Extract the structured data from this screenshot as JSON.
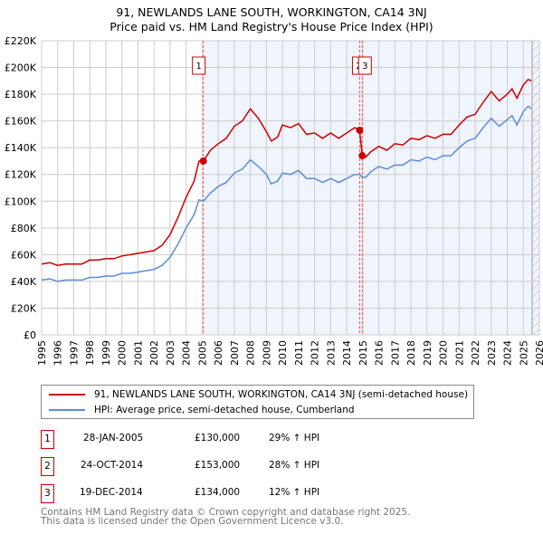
{
  "title": "91, NEWLANDS LANE SOUTH, WORKINGTON, CA14 3NJ",
  "subtitle": "Price paid vs. HM Land Registry's House Price Index (HPI)",
  "chart_data": {
    "type": "line",
    "title": "91, NEWLANDS LANE SOUTH, WORKINGTON, CA14 3NJ",
    "subtitle": "Price paid vs. HM Land Registry's House Price Index (HPI)",
    "xlim": [
      1995,
      2026
    ],
    "ylim": [
      0,
      220000
    ],
    "x_ticks": [
      "1995",
      "1996",
      "1997",
      "1998",
      "1999",
      "2000",
      "2001",
      "2002",
      "2003",
      "2004",
      "2005",
      "2006",
      "2007",
      "2008",
      "2009",
      "2010",
      "2011",
      "2012",
      "2013",
      "2014",
      "2015",
      "2016",
      "2017",
      "2018",
      "2019",
      "2020",
      "2021",
      "2022",
      "2023",
      "2024",
      "2025",
      "2026"
    ],
    "y_ticks": [
      {
        "v": 0,
        "label": "£0"
      },
      {
        "v": 20000,
        "label": "£20K"
      },
      {
        "v": 40000,
        "label": "£40K"
      },
      {
        "v": 60000,
        "label": "£60K"
      },
      {
        "v": 80000,
        "label": "£80K"
      },
      {
        "v": 100000,
        "label": "£100K"
      },
      {
        "v": 120000,
        "label": "£120K"
      },
      {
        "v": 140000,
        "label": "£140K"
      },
      {
        "v": 160000,
        "label": "£160K"
      },
      {
        "v": 180000,
        "label": "£180K"
      },
      {
        "v": 200000,
        "label": "£200K"
      },
      {
        "v": 220000,
        "label": "£220K"
      }
    ],
    "grid": true,
    "x": [
      1995,
      1995.5,
      1996,
      1996.5,
      1997,
      1997.5,
      1998,
      1998.5,
      1999,
      1999.5,
      2000,
      2000.5,
      2001,
      2001.5,
      2002,
      2002.5,
      2003,
      2003.5,
      2004,
      2004.5,
      2004.8,
      2005.08,
      2005.5,
      2006,
      2006.5,
      2007,
      2007.5,
      2008,
      2008.5,
      2009,
      2009.3,
      2009.7,
      2010,
      2010.5,
      2011,
      2011.5,
      2012,
      2012.5,
      2013,
      2013.5,
      2014,
      2014.5,
      2014.8,
      2014.97,
      2015.2,
      2015.5,
      2016,
      2016.5,
      2017,
      2017.5,
      2018,
      2018.5,
      2019,
      2019.5,
      2020,
      2020.5,
      2021,
      2021.5,
      2022,
      2022.5,
      2023,
      2023.5,
      2024,
      2024.3,
      2024.6,
      2025,
      2025.3,
      2025.5
    ],
    "series": [
      {
        "name": "91, NEWLANDS LANE SOUTH, WORKINGTON, CA14 3NJ (semi-detached house)",
        "color": "#cc0000",
        "values": [
          53,
          54,
          52,
          53,
          53,
          53,
          56,
          56,
          57,
          57,
          59,
          60,
          61,
          62,
          63,
          67,
          75,
          88,
          103,
          115,
          130,
          130,
          138,
          143,
          147,
          156,
          160,
          169,
          162,
          152,
          145,
          148,
          157,
          155,
          158,
          150,
          151,
          147,
          151,
          147,
          151,
          155,
          153,
          134,
          133,
          137,
          141,
          138,
          143,
          142,
          147,
          146,
          149,
          147,
          150,
          150,
          157,
          163,
          165,
          174,
          182,
          175,
          180,
          184,
          177,
          187,
          191,
          190
        ]
      },
      {
        "name": "HPI: Average price, semi-detached house, Cumberland",
        "color": "#5b8dd6",
        "values": [
          41,
          42,
          40,
          41,
          41,
          41,
          43,
          43,
          44,
          44,
          46,
          46,
          47,
          48,
          49,
          52,
          58,
          68,
          80,
          90,
          101,
          100,
          106,
          111,
          114,
          121,
          124,
          131,
          126,
          120,
          113,
          115,
          121,
          120,
          123,
          117,
          117,
          114,
          117,
          114,
          117,
          120,
          120,
          118,
          118,
          122,
          126,
          124,
          127,
          127,
          131,
          130,
          133,
          131,
          134,
          134,
          140,
          145,
          147,
          155,
          162,
          156,
          161,
          164,
          157,
          167,
          171,
          169
        ]
      }
    ],
    "value_unit": "thousands GBP",
    "sales": [
      {
        "id": "1",
        "x": 2005.07,
        "price": 130000,
        "date": "28-JAN-2005",
        "price_label": "£130,000",
        "hpi": "29% ↑ HPI"
      },
      {
        "id": "2",
        "x": 2014.81,
        "price": 153000,
        "date": "24-OCT-2014",
        "price_label": "£153,000",
        "hpi": "28% ↑ HPI"
      },
      {
        "id": "3",
        "x": 2014.97,
        "price": 134000,
        "date": "19-DEC-2014",
        "price_label": "£134,000",
        "hpi": "12% ↑ HPI"
      }
    ],
    "legend_placement": "below"
  },
  "footer": [
    "Contains HM Land Registry data © Crown copyright and database right 2025.",
    "This data is licensed under the Open Government Licence v3.0."
  ]
}
